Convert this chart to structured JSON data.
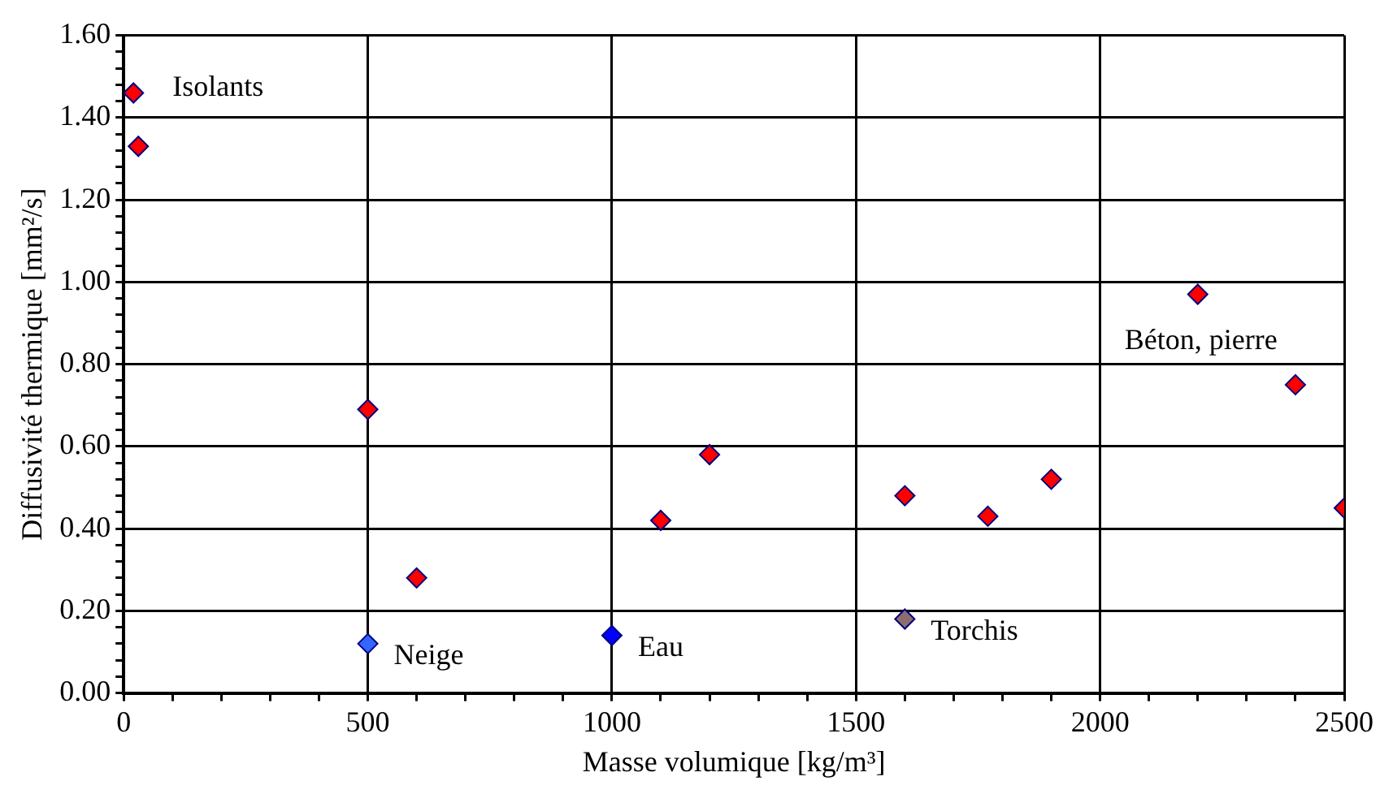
{
  "chart_data": {
    "type": "scatter",
    "xlabel": "Masse volumique [kg/m³]",
    "ylabel": "Diffusivité thermique [mm²/s]",
    "series": [
      {
        "color": "#ff0000",
        "x": [
          20,
          30,
          500,
          600,
          1100,
          1200,
          1600,
          1770,
          1900,
          2200,
          2400,
          2500
        ],
        "values": [
          1.46,
          1.33,
          0.69,
          0.28,
          0.42,
          0.58,
          0.48,
          0.43,
          0.52,
          0.97,
          0.75,
          0.45
        ]
      },
      {
        "name": "Neige",
        "color": "#3366ff",
        "x": [
          500
        ],
        "values": [
          0.12
        ]
      },
      {
        "name": "Eau",
        "color": "#0000ff",
        "x": [
          1000
        ],
        "values": [
          0.14
        ]
      },
      {
        "name": "Torchis",
        "color": "#8c6e6e",
        "x": [
          1600
        ],
        "values": [
          0.18
        ]
      }
    ],
    "annotations": [
      "Isolants",
      "Béton, pierre"
    ],
    "xlim": [
      0,
      2500
    ],
    "ylim": [
      0,
      1.6
    ],
    "xticks": [
      0,
      {
        "value": 100,
        "label": null
      },
      {
        "value": 200,
        "label": null
      },
      {
        "value": 300,
        "label": null
      },
      {
        "value": 400,
        "label": null
      },
      500,
      {
        "value": 600,
        "label": null
      },
      {
        "value": 700,
        "label": null
      },
      {
        "value": 800,
        "label": null
      },
      {
        "value": 900,
        "label": null
      },
      1000,
      {
        "value": 1100,
        "label": null
      },
      {
        "value": 1200,
        "label": null
      },
      {
        "value": 1300,
        "label": null
      },
      {
        "value": 1400,
        "label": null
      },
      1500,
      {
        "value": 1600,
        "label": null
      },
      {
        "value": 1700,
        "label": null
      },
      {
        "value": 1800,
        "label": null
      },
      {
        "value": 1900,
        "label": null
      },
      2000,
      {
        "value": 2100,
        "label": null
      },
      {
        "value": 2200,
        "label": null
      },
      {
        "value": 2300,
        "label": null
      },
      {
        "value": 2400,
        "label": null
      },
      2500
    ],
    "yticks": [
      {
        "value": 0,
        "label": "0.00"
      },
      {
        "value": 0.04,
        "label": null
      },
      {
        "value": 0.08,
        "label": null
      },
      {
        "value": 0.12,
        "label": null
      },
      {
        "value": 0.16,
        "label": null
      },
      {
        "value": 0.2,
        "label": "0.20"
      },
      {
        "value": 0.24,
        "label": null
      },
      {
        "value": 0.28,
        "label": null
      },
      {
        "value": 0.32,
        "label": null
      },
      {
        "value": 0.36,
        "label": null
      },
      {
        "value": 0.4,
        "label": "0.40"
      },
      {
        "value": 0.44,
        "label": null
      },
      {
        "value": 0.48,
        "label": null
      },
      {
        "value": 0.52,
        "label": null
      },
      {
        "value": 0.56,
        "label": null
      },
      {
        "value": 0.6,
        "label": "0.60"
      },
      {
        "value": 0.64,
        "label": null
      },
      {
        "value": 0.68,
        "label": null
      },
      {
        "value": 0.72,
        "label": null
      },
      {
        "value": 0.76,
        "label": null
      },
      {
        "value": 0.8,
        "label": "0.80"
      },
      {
        "value": 0.84,
        "label": null
      },
      {
        "value": 0.88,
        "label": null
      },
      {
        "value": 0.92,
        "label": null
      },
      {
        "value": 0.96,
        "label": null
      },
      {
        "value": 1.0,
        "label": "1.00"
      },
      {
        "value": 1.04,
        "label": null
      },
      {
        "value": 1.08,
        "label": null
      },
      {
        "value": 1.12,
        "label": null
      },
      {
        "value": 1.16,
        "label": null
      },
      {
        "value": 1.2,
        "label": "1.20"
      },
      {
        "value": 1.24,
        "label": null
      },
      {
        "value": 1.28,
        "label": null
      },
      {
        "value": 1.32,
        "label": null
      },
      {
        "value": 1.36,
        "label": null
      },
      {
        "value": 1.4,
        "label": "1.40"
      },
      {
        "value": 1.44,
        "label": null
      },
      {
        "value": 1.48,
        "label": null
      },
      {
        "value": 1.52,
        "label": null
      },
      {
        "value": 1.56,
        "label": null
      },
      {
        "value": 1.6,
        "label": "1.60"
      }
    ],
    "grid": true,
    "legend": false,
    "marker": "diamond"
  }
}
